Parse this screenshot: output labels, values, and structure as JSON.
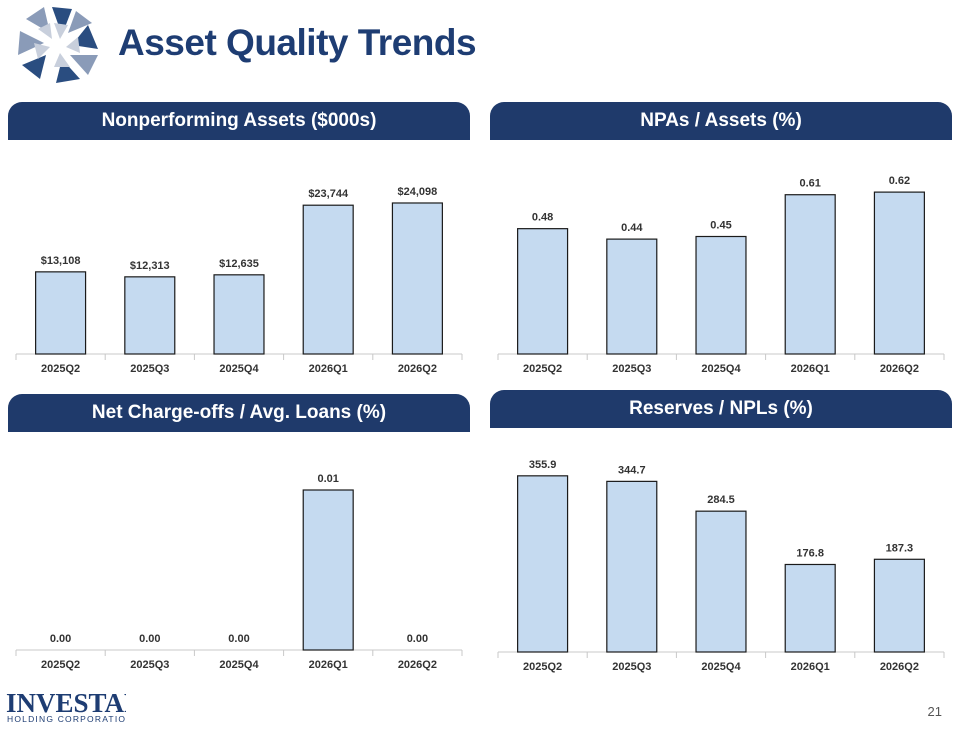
{
  "page": {
    "title": "Asset Quality Trends",
    "page_number": "21",
    "footer_logo": {
      "name": "INVESTAR",
      "subtitle": "HOLDING CORPORATION"
    },
    "colors": {
      "header": "#1f3a6b",
      "title": "#1e3d73",
      "bar_fill": "#c5daf0",
      "bar_stroke": "#1a1a1a"
    },
    "icons": [
      "company-star-logo"
    ]
  },
  "chart_data": [
    {
      "type": "bar",
      "title": "Nonperforming Assets ($000s)",
      "categories": [
        "2025Q2",
        "2025Q3",
        "2025Q4",
        "2026Q1",
        "2026Q2"
      ],
      "values": [
        13108,
        12313,
        12635,
        23744,
        24098
      ],
      "value_labels": [
        "$13,108",
        "$12,313",
        "$12,635",
        "$23,744",
        "$24,098"
      ],
      "ylim": [
        0,
        30000
      ],
      "grid": false
    },
    {
      "type": "bar",
      "title": "NPAs / Assets (%)",
      "categories": [
        "2025Q2",
        "2025Q3",
        "2025Q4",
        "2026Q1",
        "2026Q2"
      ],
      "values": [
        0.48,
        0.44,
        0.45,
        0.61,
        0.62
      ],
      "value_labels": [
        "0.48",
        "0.44",
        "0.45",
        "0.61",
        "0.62"
      ],
      "ylim": [
        0,
        0.72
      ],
      "grid": false
    },
    {
      "type": "bar",
      "title": "Net Charge-offs / Avg. Loans (%)",
      "categories": [
        "2025Q2",
        "2025Q3",
        "2025Q4",
        "2026Q1",
        "2026Q2"
      ],
      "values": [
        0.0,
        0.0,
        0.0,
        0.01,
        0.0
      ],
      "value_labels": [
        "0.00",
        "0.00",
        "0.00",
        "0.01",
        "0.00"
      ],
      "ylim": [
        0,
        0.012
      ],
      "grid": false
    },
    {
      "type": "bar",
      "title": "Reserves / NPLs (%)",
      "categories": [
        "2025Q2",
        "2025Q3",
        "2025Q4",
        "2026Q1",
        "2026Q2"
      ],
      "values": [
        355.9,
        344.7,
        284.5,
        176.8,
        187.3
      ],
      "value_labels": [
        "355.9",
        "344.7",
        "284.5",
        "176.8",
        "187.3"
      ],
      "ylim": [
        0,
        400
      ],
      "grid": false
    }
  ]
}
